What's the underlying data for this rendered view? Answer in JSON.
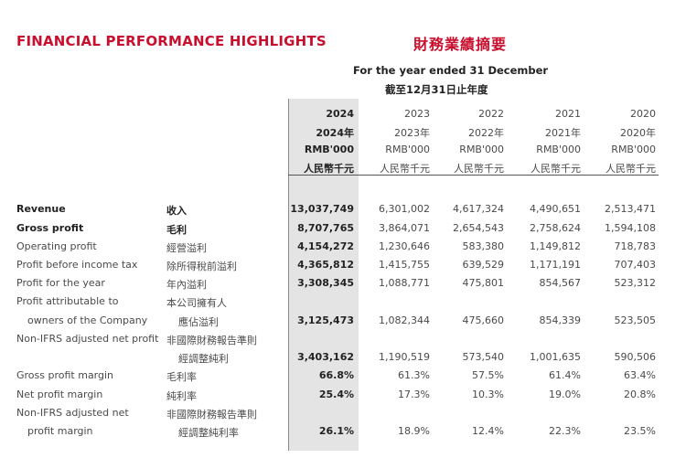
{
  "title": {
    "en": "FINANCIAL PERFORMANCE HIGHLIGHTS",
    "zh": "財務業績摘要"
  },
  "period": {
    "en": "For the year ended 31 December",
    "zh": "截至12月31日止年度"
  },
  "columns": [
    {
      "year": "2024",
      "year_zh": "2024年",
      "unit": "RMB'000",
      "unit_zh": "人民幣千元"
    },
    {
      "year": "2023",
      "year_zh": "2023年",
      "unit": "RMB'000",
      "unit_zh": "人民幣千元"
    },
    {
      "year": "2022",
      "year_zh": "2022年",
      "unit": "RMB'000",
      "unit_zh": "人民幣千元"
    },
    {
      "year": "2021",
      "year_zh": "2021年",
      "unit": "RMB'000",
      "unit_zh": "人民幣千元"
    },
    {
      "year": "2020",
      "year_zh": "2020年",
      "unit": "RMB'000",
      "unit_zh": "人民幣千元"
    }
  ],
  "rows": [
    {
      "en": "Revenue",
      "zh": "收入",
      "values": [
        "13,037,749",
        "6,301,002",
        "4,617,324",
        "4,490,651",
        "2,513,471"
      ]
    },
    {
      "en": "Gross profit",
      "zh": "毛利",
      "values": [
        "8,707,765",
        "3,864,071",
        "2,654,543",
        "2,758,624",
        "1,594,108"
      ]
    },
    {
      "en": "Operating profit",
      "zh": "經營溢利",
      "values": [
        "4,154,272",
        "1,230,646",
        "583,380",
        "1,149,812",
        "718,783"
      ]
    },
    {
      "en": "Profit before income tax",
      "zh": "除所得稅前溢利",
      "values": [
        "4,365,812",
        "1,415,755",
        "639,529",
        "1,171,191",
        "707,403"
      ]
    },
    {
      "en": "Profit for the year",
      "zh": "年內溢利",
      "values": [
        "3,308,345",
        "1,088,771",
        "475,801",
        "854,567",
        "523,312"
      ]
    },
    {
      "en": "Profit attributable to",
      "zh": "本公司擁有人"
    },
    {
      "en": "owners of the Company",
      "zh": "應佔溢利",
      "values": [
        "3,125,473",
        "1,082,344",
        "475,660",
        "854,339",
        "523,505"
      ]
    },
    {
      "en": "Non-IFRS adjusted net profit",
      "zh": "非國際財務報告準則"
    },
    {
      "en": "",
      "zh": "經調整純利",
      "values": [
        "3,403,162",
        "1,190,519",
        "573,540",
        "1,001,635",
        "590,506"
      ]
    },
    {
      "en": "Gross profit margin",
      "zh": "毛利率",
      "values": [
        "66.8%",
        "61.3%",
        "57.5%",
        "61.4%",
        "63.4%"
      ]
    },
    {
      "en": "Net profit margin",
      "zh": "純利率",
      "values": [
        "25.4%",
        "17.3%",
        "10.3%",
        "19.0%",
        "20.8%"
      ]
    },
    {
      "en": "Non-IFRS adjusted net",
      "zh": "非國際財務報告準則"
    },
    {
      "en": "profit margin",
      "zh": "經調整純利率",
      "values": [
        "26.1%",
        "18.9%",
        "12.4%",
        "22.3%",
        "23.5%"
      ]
    }
  ]
}
